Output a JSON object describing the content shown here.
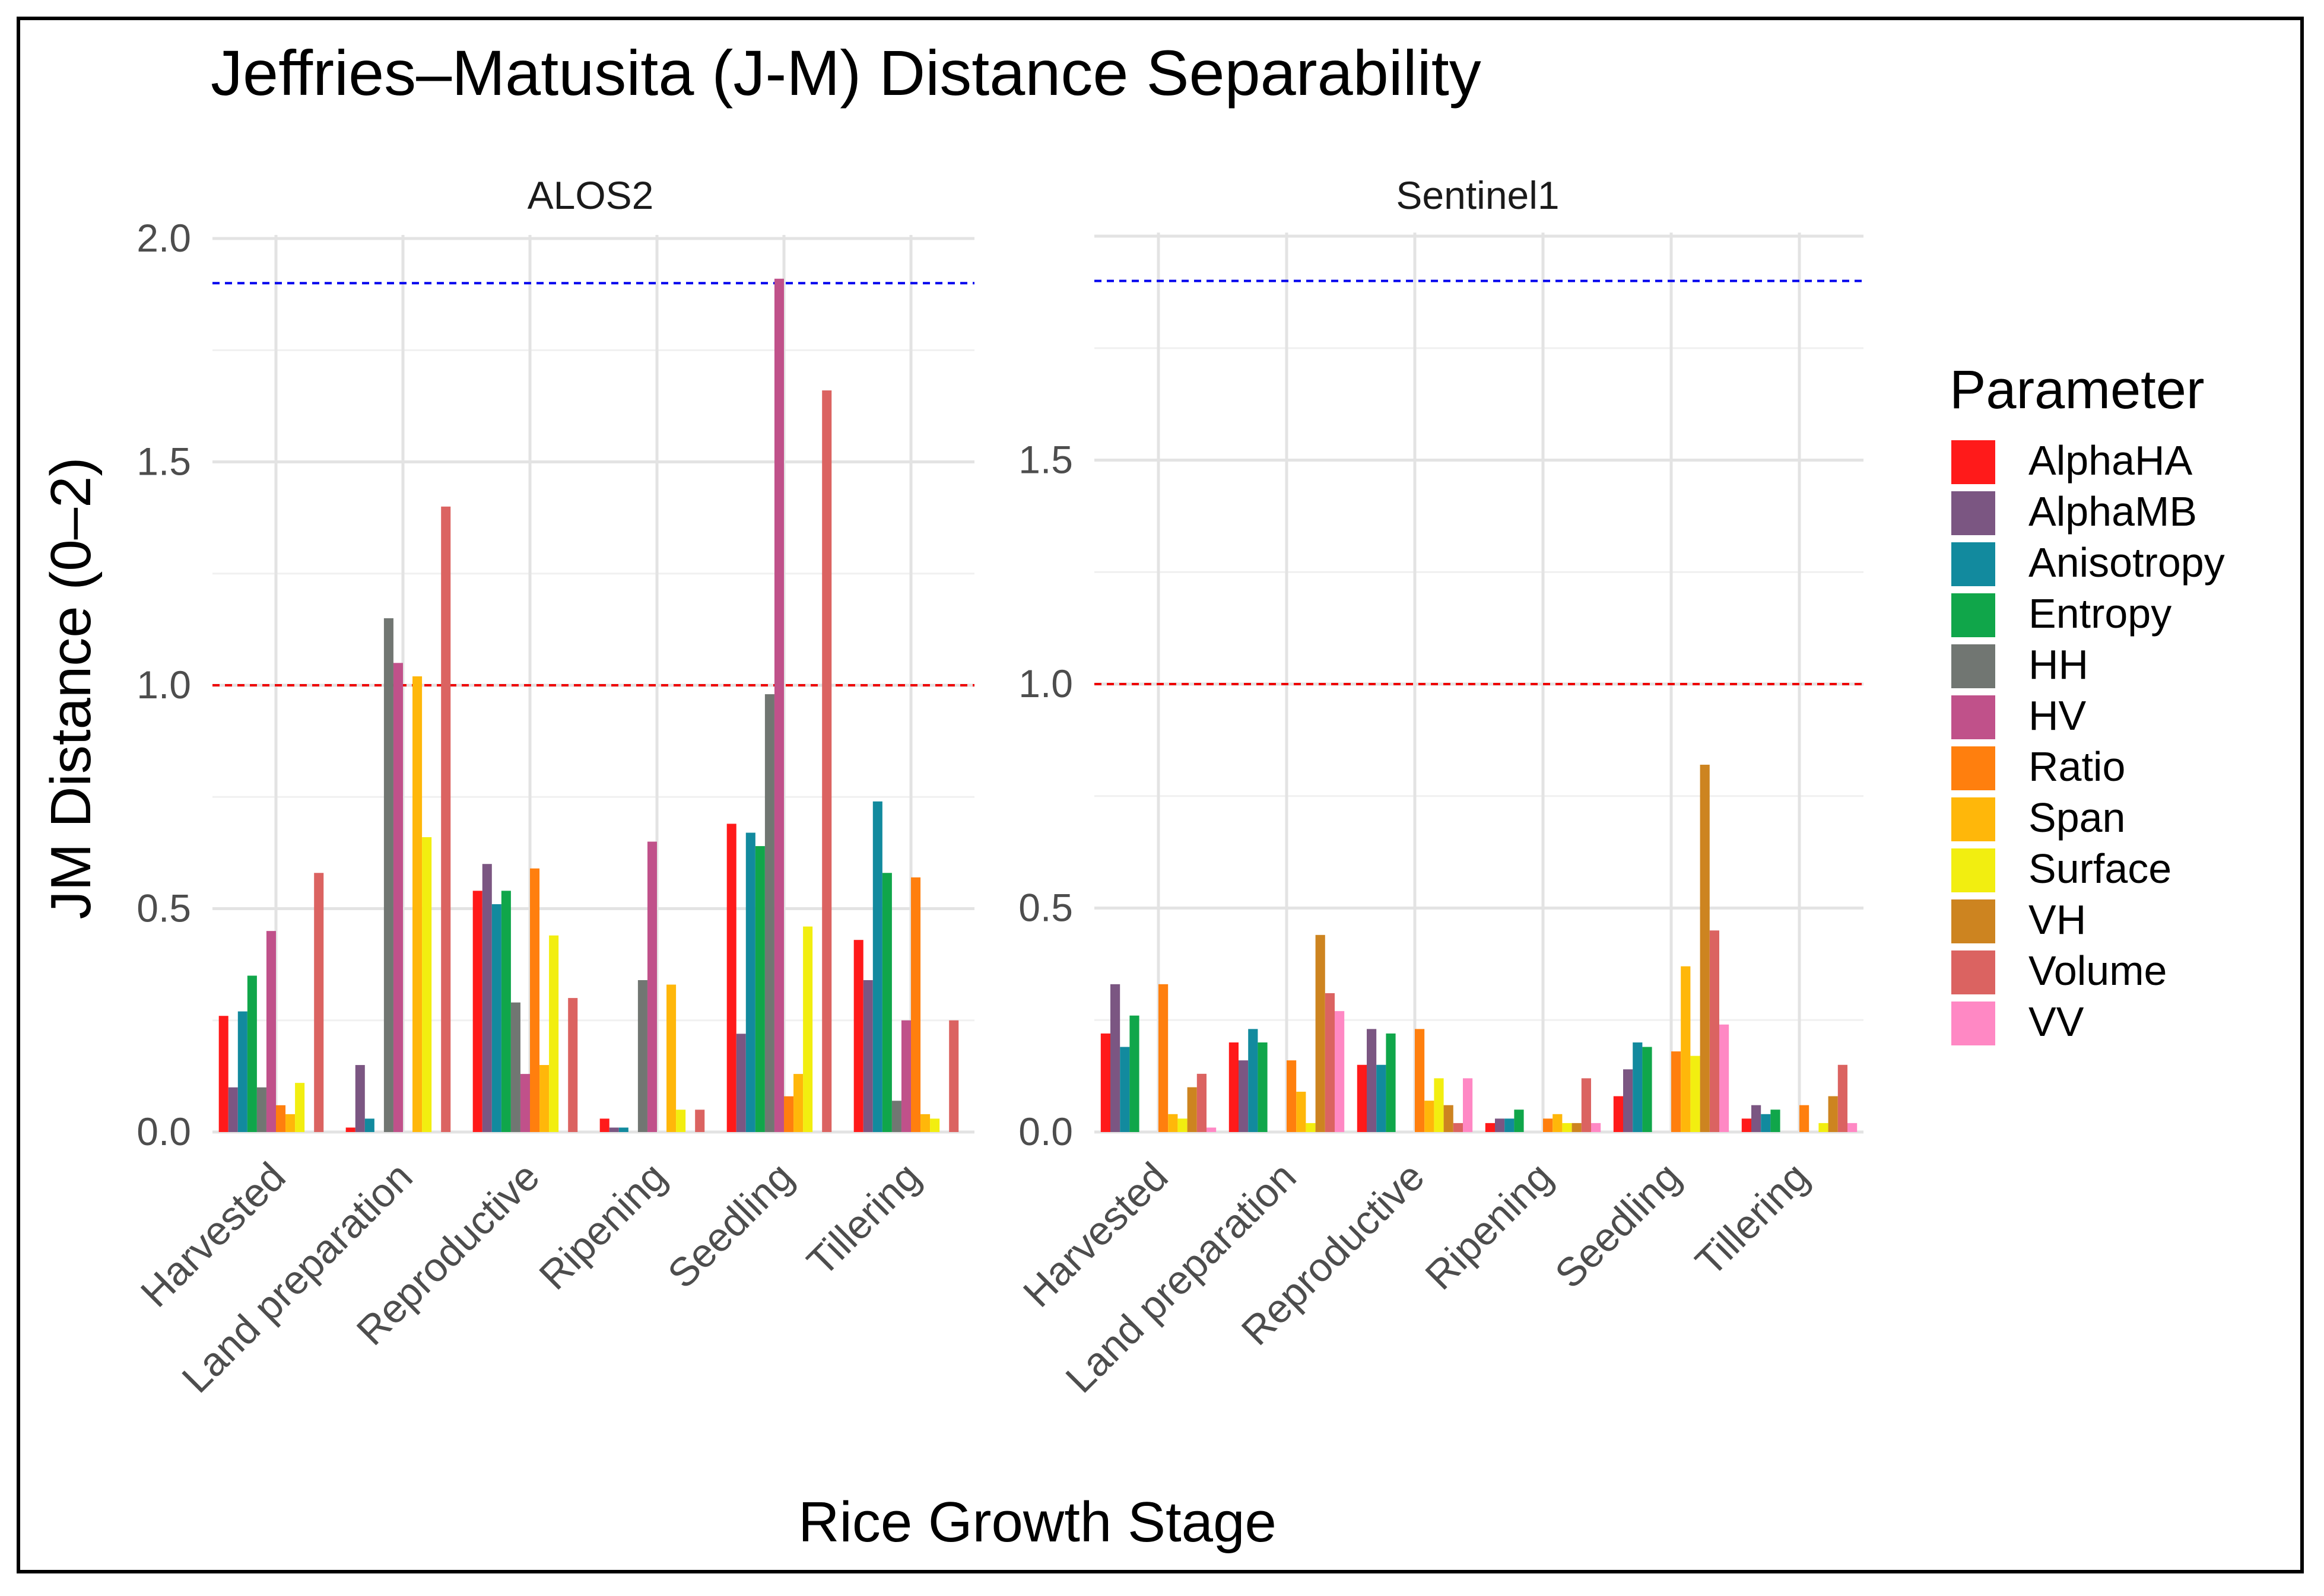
{
  "chart_data": {
    "type": "bar",
    "title": "Jeffries–Matusita (J-M) Distance Separability",
    "xlabel": "Rice Growth Stage",
    "ylabel": "JM Distance (0–2)",
    "legend_title": "Parameter",
    "legend_position": "right",
    "categories": [
      "Harvested",
      "Land preparation",
      "Reproductive",
      "Ripening",
      "Seedling",
      "Tillering"
    ],
    "reference_lines": [
      {
        "y": 1.9,
        "color": "#0000ee",
        "style": "dashed"
      },
      {
        "y": 1.0,
        "color": "#ee0000",
        "style": "dashed"
      }
    ],
    "panels": [
      {
        "name": "ALOS2",
        "ylim": [
          0,
          2.0
        ],
        "yticks": [
          0.0,
          0.5,
          1.0,
          1.5,
          2.0
        ],
        "ytick_labels": [
          "0.0",
          "0.5",
          "1.0",
          "1.5",
          "2.0"
        ],
        "series": [
          {
            "name": "AlphaHA",
            "color": "#ff1a1a",
            "values": [
              0.26,
              0.01,
              0.54,
              0.03,
              0.69,
              0.43
            ]
          },
          {
            "name": "AlphaMB",
            "color": "#7b5682",
            "values": [
              0.1,
              0.15,
              0.6,
              0.01,
              0.22,
              0.34
            ]
          },
          {
            "name": "Anisotropy",
            "color": "#128a9e",
            "values": [
              0.27,
              0.03,
              0.51,
              0.01,
              0.67,
              0.74
            ]
          },
          {
            "name": "Entropy",
            "color": "#10a64a",
            "values": [
              0.35,
              0.0,
              0.54,
              0.0,
              0.64,
              0.58
            ]
          },
          {
            "name": "HH",
            "color": "#717672",
            "values": [
              0.1,
              1.15,
              0.29,
              0.34,
              0.98,
              0.07
            ]
          },
          {
            "name": "HV",
            "color": "#c0518a",
            "values": [
              0.45,
              1.05,
              0.13,
              0.65,
              1.91,
              0.25
            ]
          },
          {
            "name": "Ratio",
            "color": "#ff7f0e",
            "values": [
              0.06,
              0.0,
              0.59,
              0.0,
              0.08,
              0.57
            ]
          },
          {
            "name": "Span",
            "color": "#ffb70a",
            "values": [
              0.04,
              1.02,
              0.15,
              0.33,
              0.13,
              0.04
            ]
          },
          {
            "name": "Surface",
            "color": "#f2ee10",
            "values": [
              0.11,
              0.66,
              0.44,
              0.05,
              0.46,
              0.03
            ]
          },
          {
            "name": "VH",
            "color": "#cd8420",
            "values": [
              0.0,
              0.0,
              0.0,
              0.0,
              0.0,
              0.0
            ]
          },
          {
            "name": "Volume",
            "color": "#db6361",
            "values": [
              0.58,
              1.4,
              0.3,
              0.05,
              1.66,
              0.25
            ]
          },
          {
            "name": "VV",
            "color": "#ff88c4",
            "values": [
              0.0,
              0.0,
              0.0,
              0.0,
              0.0,
              0.0
            ]
          }
        ]
      },
      {
        "name": "Sentinel1",
        "ylim": [
          0,
          2.0
        ],
        "yticks": [
          0.0,
          0.5,
          1.0,
          1.5
        ],
        "ytick_labels": [
          "0.0",
          "0.5",
          "1.0",
          "1.5"
        ],
        "series": [
          {
            "name": "AlphaHA",
            "color": "#ff1a1a",
            "values": [
              0.22,
              0.2,
              0.15,
              0.02,
              0.08,
              0.03
            ]
          },
          {
            "name": "AlphaMB",
            "color": "#7b5682",
            "values": [
              0.33,
              0.16,
              0.23,
              0.03,
              0.14,
              0.06
            ]
          },
          {
            "name": "Anisotropy",
            "color": "#128a9e",
            "values": [
              0.19,
              0.23,
              0.15,
              0.03,
              0.2,
              0.04
            ]
          },
          {
            "name": "Entropy",
            "color": "#10a64a",
            "values": [
              0.26,
              0.2,
              0.22,
              0.05,
              0.19,
              0.05
            ]
          },
          {
            "name": "HH",
            "color": "#717672",
            "values": [
              0.0,
              0.0,
              0.0,
              0.0,
              0.0,
              0.0
            ]
          },
          {
            "name": "HV",
            "color": "#c0518a",
            "values": [
              0.0,
              0.0,
              0.0,
              0.0,
              0.0,
              0.0
            ]
          },
          {
            "name": "Ratio",
            "color": "#ff7f0e",
            "values": [
              0.33,
              0.16,
              0.23,
              0.03,
              0.18,
              0.06
            ]
          },
          {
            "name": "Span",
            "color": "#ffb70a",
            "values": [
              0.04,
              0.09,
              0.07,
              0.04,
              0.37,
              0.0
            ]
          },
          {
            "name": "Surface",
            "color": "#f2ee10",
            "values": [
              0.03,
              0.02,
              0.12,
              0.02,
              0.17,
              0.02
            ]
          },
          {
            "name": "VH",
            "color": "#cd8420",
            "values": [
              0.1,
              0.44,
              0.06,
              0.02,
              0.82,
              0.08
            ]
          },
          {
            "name": "Volume",
            "color": "#db6361",
            "values": [
              0.13,
              0.31,
              0.02,
              0.12,
              0.45,
              0.15
            ]
          },
          {
            "name": "VV",
            "color": "#ff88c4",
            "values": [
              0.01,
              0.27,
              0.12,
              0.02,
              0.24,
              0.02
            ]
          }
        ]
      }
    ]
  }
}
